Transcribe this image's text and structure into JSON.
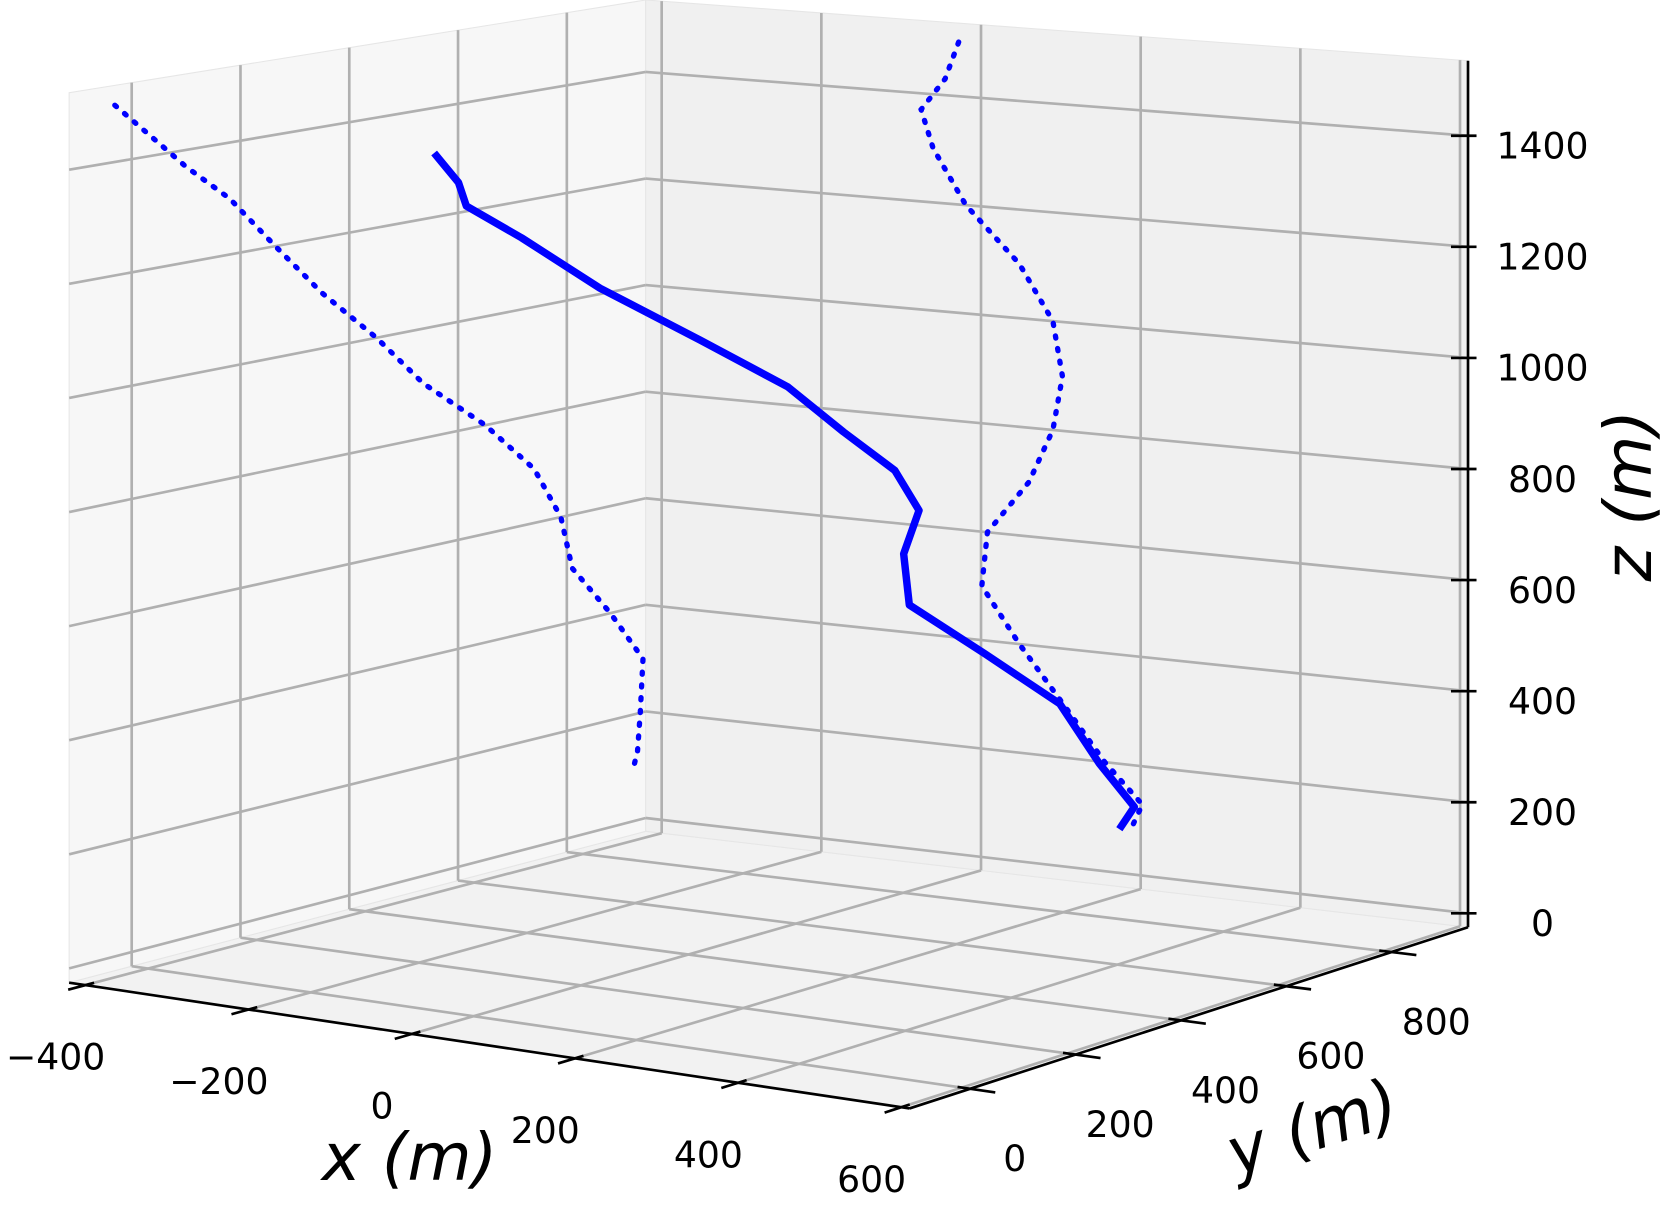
{
  "chart_data": {
    "type": "line3d",
    "series": [
      {
        "color": "#0000ff",
        "x": [
          -28,
          -45,
          -75,
          -60,
          -19,
          48,
          90,
          102,
          90,
          60,
          8,
          1,
          48,
          102,
          155,
          202,
          190
        ],
        "y": [
          -31,
          40,
          100,
          180,
          264,
          350,
          450,
          536,
          650,
          740,
          789,
          810,
          880,
          940,
          935,
          930,
          920
        ],
        "z": [
          1500,
          1430,
          1370,
          1300,
          1200,
          1100,
          1000,
          900,
          800,
          700,
          600,
          500,
          400,
          300,
          200,
          130,
          90
        ]
      }
    ],
    "xlim": [
      -420,
      610
    ],
    "ylim": [
      -115,
      945
    ],
    "zlim": [
      -25,
      1535
    ],
    "xticks": [
      {
        "value": -400,
        "label": "−400"
      },
      {
        "value": -200,
        "label": "−200"
      },
      0,
      200,
      400,
      600
    ],
    "yticks": [
      0,
      200,
      400,
      600,
      800
    ],
    "zticks": [
      0,
      200,
      400,
      600,
      800,
      1000,
      1200,
      1400
    ],
    "xlabel": "x (m)",
    "ylabel": "y (m)",
    "zlabel": "z (m)",
    "grid": true,
    "projections": true
  }
}
